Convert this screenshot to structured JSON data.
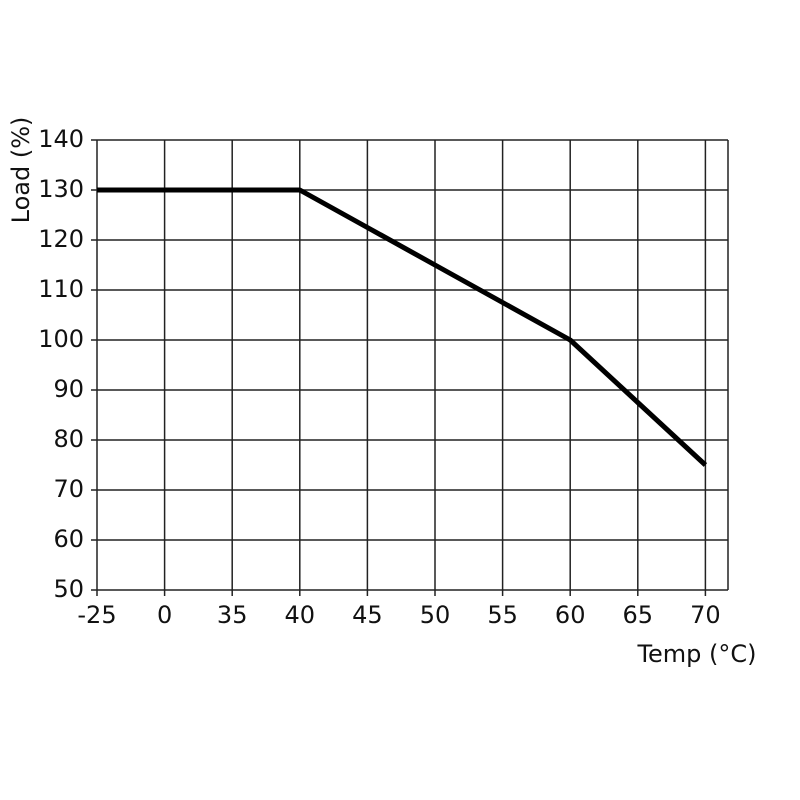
{
  "chart_data": {
    "type": "line",
    "x_label": "Temp (°C)",
    "y_label": "Load (%)",
    "categories": [
      "-25",
      "0",
      "35",
      "40",
      "45",
      "50",
      "55",
      "60",
      "65",
      "70"
    ],
    "series": [
      {
        "name": "Load",
        "color": "#000000",
        "values": [
          130,
          130,
          130,
          130,
          122.5,
          115,
          107.5,
          100,
          87.5,
          75
        ]
      }
    ],
    "ylim": [
      50,
      140
    ],
    "yticks": [
      50,
      60,
      70,
      80,
      90,
      100,
      110,
      120,
      130,
      140
    ],
    "grid": true
  }
}
